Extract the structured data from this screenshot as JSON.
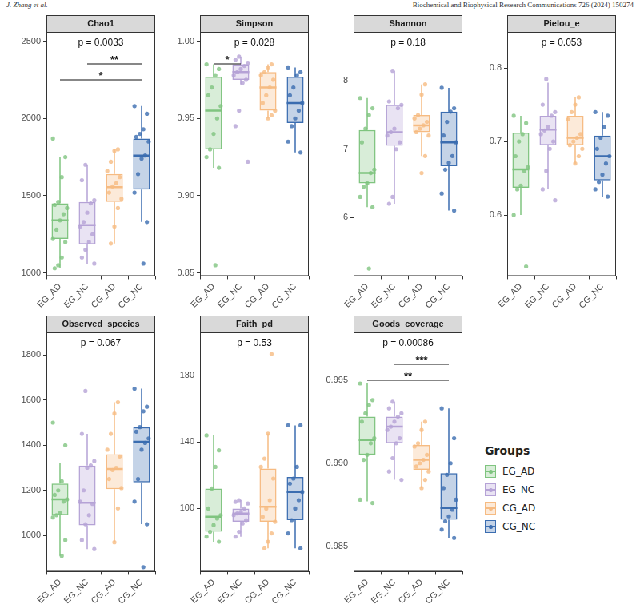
{
  "header": {
    "author": "J. Zhang et al.",
    "journal": "Biochemical and Biophysical Research Communications 726 (2024) 150274"
  },
  "legend_title": "Groups",
  "groups": [
    {
      "name": "EG_AD",
      "color": "#7fc47f"
    },
    {
      "name": "EG_NC",
      "color": "#b5a2d6"
    },
    {
      "name": "CG_AD",
      "color": "#f6bb82"
    },
    {
      "name": "CG_NC",
      "color": "#3b6db0"
    }
  ],
  "chart_data": [
    {
      "type": "boxplot",
      "title": "Chao1",
      "annotation": "p = 0.0033",
      "categories": [
        "EG_AD",
        "EG_NC",
        "CG_AD",
        "CG_NC"
      ],
      "ylim": [
        980,
        2560
      ],
      "yticks": [
        1000,
        1500,
        2000,
        2500
      ],
      "grid": false,
      "boxes": [
        {
          "min": 1030,
          "q1": 1220,
          "median": 1340,
          "q3": 1450,
          "max": 1750
        },
        {
          "min": 1060,
          "q1": 1185,
          "median": 1310,
          "q3": 1460,
          "max": 1700
        },
        {
          "min": 1190,
          "q1": 1460,
          "median": 1555,
          "q3": 1640,
          "max": 1800
        },
        {
          "min": 1330,
          "q1": 1540,
          "median": 1760,
          "q3": 1870,
          "max": 2080
        }
      ],
      "points": [
        [
          1870,
          1750,
          1620,
          1460,
          1440,
          1420,
          1380,
          1340,
          1280,
          1220,
          1200,
          1100,
          1050,
          1030
        ],
        [
          1700,
          1600,
          1470,
          1450,
          1390,
          1330,
          1300,
          1250,
          1200,
          1150,
          1100,
          1060
        ],
        [
          1800,
          1790,
          1720,
          1660,
          1620,
          1580,
          1560,
          1520,
          1480,
          1420,
          1300,
          1190
        ],
        [
          2080,
          2030,
          1930,
          1900,
          1880,
          1850,
          1760,
          1740,
          1640,
          1520,
          1330,
          1060
        ]
      ],
      "brackets": [
        {
          "from": "EG_NC",
          "to": "CG_NC",
          "label": "**"
        },
        {
          "from": "EG_AD",
          "to": "CG_NC",
          "label": "*"
        }
      ]
    },
    {
      "type": "boxplot",
      "title": "Simpson",
      "annotation": "p = 0.028",
      "categories": [
        "EG_AD",
        "EG_NC",
        "CG_AD",
        "CG_NC"
      ],
      "ylim": [
        0.848,
        1.006
      ],
      "yticks": [
        0.85,
        {
          "value": 0.9,
          "label": "0.90"
        },
        0.95,
        {
          "value": 1,
          "label": "1.00"
        }
      ],
      "grid": false,
      "boxes": [
        {
          "min": 0.918,
          "q1": 0.93,
          "median": 0.955,
          "q3": 0.977,
          "max": 0.985
        },
        {
          "min": 0.972,
          "q1": 0.975,
          "median": 0.98,
          "q3": 0.985,
          "max": 0.99
        },
        {
          "min": 0.95,
          "q1": 0.955,
          "median": 0.97,
          "q3": 0.98,
          "max": 0.985
        },
        {
          "min": 0.928,
          "q1": 0.947,
          "median": 0.96,
          "q3": 0.977,
          "max": 0.983
        }
      ],
      "points": [
        [
          0.985,
          0.982,
          0.978,
          0.97,
          0.965,
          0.958,
          0.95,
          0.94,
          0.93,
          0.925,
          0.918,
          0.855
        ],
        [
          0.99,
          0.988,
          0.986,
          0.984,
          0.982,
          0.98,
          0.978,
          0.975,
          0.973,
          0.955,
          0.945,
          0.922
        ],
        [
          0.985,
          0.983,
          0.98,
          0.978,
          0.975,
          0.97,
          0.965,
          0.96,
          0.955,
          0.952,
          0.95
        ],
        [
          0.983,
          0.98,
          0.978,
          0.97,
          0.965,
          0.96,
          0.955,
          0.95,
          0.945,
          0.935,
          0.928
        ]
      ],
      "brackets": [
        {
          "from": "EG_AD",
          "to": "EG_NC",
          "label": "*"
        }
      ]
    },
    {
      "type": "boxplot",
      "title": "Shannon",
      "annotation": "p = 0.18",
      "categories": [
        "EG_AD",
        "EG_NC",
        "CG_AD",
        "CG_NC"
      ],
      "ylim": [
        5.14,
        8.72
      ],
      "yticks": [
        6,
        7,
        8
      ],
      "grid": false,
      "boxes": [
        {
          "min": 6.15,
          "q1": 6.5,
          "median": 6.65,
          "q3": 7.28,
          "max": 7.75
        },
        {
          "min": 6.2,
          "q1": 7.05,
          "median": 7.25,
          "q3": 7.65,
          "max": 8.15
        },
        {
          "min": 6.9,
          "q1": 7.25,
          "median": 7.35,
          "q3": 7.5,
          "max": 7.95
        },
        {
          "min": 6.1,
          "q1": 6.75,
          "median": 7.1,
          "q3": 7.55,
          "max": 7.9
        }
      ],
      "points": [
        [
          7.75,
          7.6,
          7.5,
          7.3,
          7.1,
          6.7,
          6.65,
          6.5,
          6.45,
          6.3,
          6.15,
          5.25
        ],
        [
          8.15,
          7.7,
          7.65,
          7.6,
          7.3,
          7.25,
          7.2,
          7.1,
          7.0,
          6.3,
          6.2
        ],
        [
          7.95,
          7.8,
          7.5,
          7.45,
          7.4,
          7.35,
          7.3,
          7.25,
          7.2,
          6.9,
          6.65
        ],
        [
          7.9,
          7.6,
          7.55,
          7.4,
          7.2,
          7.1,
          6.9,
          6.8,
          6.7,
          6.35,
          6.1
        ]
      ],
      "brackets": []
    },
    {
      "type": "boxplot",
      "title": "Pielou_e",
      "annotation": "p = 0.053",
      "categories": [
        "EG_AD",
        "EG_NC",
        "CG_AD",
        "CG_NC"
      ],
      "ylim": [
        0.517,
        0.849
      ],
      "yticks": [
        0.6,
        0.7,
        0.8
      ],
      "grid": false,
      "boxes": [
        {
          "min": 0.6,
          "q1": 0.637,
          "median": 0.662,
          "q3": 0.712,
          "max": 0.735
        },
        {
          "min": 0.635,
          "q1": 0.695,
          "median": 0.716,
          "q3": 0.735,
          "max": 0.78
        },
        {
          "min": 0.67,
          "q1": 0.695,
          "median": 0.705,
          "q3": 0.735,
          "max": 0.76
        },
        {
          "min": 0.625,
          "q1": 0.647,
          "median": 0.68,
          "q3": 0.708,
          "max": 0.74
        }
      ],
      "points": [
        [
          0.735,
          0.725,
          0.71,
          0.7,
          0.68,
          0.665,
          0.66,
          0.64,
          0.635,
          0.6,
          0.53
        ],
        [
          0.785,
          0.75,
          0.74,
          0.735,
          0.72,
          0.715,
          0.71,
          0.7,
          0.69,
          0.66,
          0.635,
          0.62
        ],
        [
          0.76,
          0.75,
          0.74,
          0.73,
          0.71,
          0.705,
          0.7,
          0.695,
          0.69,
          0.68,
          0.67
        ],
        [
          0.74,
          0.735,
          0.72,
          0.705,
          0.69,
          0.68,
          0.67,
          0.655,
          0.645,
          0.635,
          0.625
        ]
      ],
      "brackets": []
    },
    {
      "type": "boxplot",
      "title": "Observed_species",
      "annotation": "p = 0.067",
      "categories": [
        "EG_AD",
        "EG_NC",
        "CG_AD",
        "CG_NC"
      ],
      "ylim": [
        840,
        1900
      ],
      "yticks": [
        1000,
        1200,
        1400,
        1600,
        1800
      ],
      "grid": false,
      "boxes": [
        {
          "min": 910,
          "q1": 1090,
          "median": 1160,
          "q3": 1230,
          "max": 1320
        },
        {
          "min": 940,
          "q1": 1045,
          "median": 1145,
          "q3": 1310,
          "max": 1450
        },
        {
          "min": 970,
          "q1": 1205,
          "median": 1295,
          "q3": 1360,
          "max": 1590
        },
        {
          "min": 1050,
          "q1": 1235,
          "median": 1415,
          "q3": 1480,
          "max": 1650
        }
      ],
      "points": [
        [
          1500,
          1400,
          1240,
          1200,
          1180,
          1160,
          1150,
          1100,
          1090,
          1080,
          980,
          910
        ],
        [
          1640,
          1450,
          1330,
          1310,
          1300,
          1200,
          1150,
          1140,
          1090,
          1050,
          980,
          940
        ],
        [
          1590,
          1540,
          1450,
          1380,
          1350,
          1300,
          1290,
          1250,
          1210,
          1120,
          970
        ],
        [
          1650,
          1570,
          1550,
          1480,
          1460,
          1430,
          1410,
          1380,
          1250,
          1150,
          1050,
          860
        ]
      ],
      "brackets": []
    },
    {
      "type": "boxplot",
      "title": "Faith_pd",
      "annotation": "p = 0.53",
      "categories": [
        "EG_AD",
        "EG_NC",
        "CG_AD",
        "CG_NC"
      ],
      "ylim": [
        62,
        206
      ],
      "yticks": [
        100,
        140,
        180
      ],
      "grid": false,
      "boxes": [
        {
          "min": 80,
          "q1": 86,
          "median": 95,
          "q3": 112,
          "max": 144
        },
        {
          "min": 83,
          "q1": 92,
          "median": 97,
          "q3": 100,
          "max": 105
        },
        {
          "min": 76,
          "q1": 92,
          "median": 101,
          "q3": 124,
          "max": 145
        },
        {
          "min": 76,
          "q1": 93,
          "median": 110,
          "q3": 119,
          "max": 150
        }
      ],
      "points": [
        [
          144,
          135,
          125,
          112,
          100,
          96,
          94,
          90,
          86,
          83,
          80
        ],
        [
          105,
          104,
          103,
          100,
          98,
          97,
          96,
          93,
          91,
          86,
          83
        ],
        [
          193,
          145,
          130,
          125,
          118,
          105,
          100,
          95,
          92,
          85,
          80,
          76
        ],
        [
          150,
          150,
          125,
          118,
          115,
          110,
          105,
          100,
          93,
          85,
          76
        ]
      ],
      "brackets": []
    },
    {
      "type": "boxplot",
      "title": "Goods_coverage",
      "annotation": "p = 0.00086",
      "categories": [
        "EG_AD",
        "EG_NC",
        "CG_AD",
        "CG_NC"
      ],
      "ylim": [
        0.98347,
        0.99788
      ],
      "yticks": [
        0.985,
        {
          "value": 0.99,
          "label": "0.990"
        },
        0.995
      ],
      "grid": false,
      "boxes": [
        {
          "min": 0.9877,
          "q1": 0.9905,
          "median": 0.9914,
          "q3": 0.9928,
          "max": 0.9948
        },
        {
          "min": 0.989,
          "q1": 0.9912,
          "median": 0.9922,
          "q3": 0.9928,
          "max": 0.9937
        },
        {
          "min": 0.9885,
          "q1": 0.9896,
          "median": 0.9902,
          "q3": 0.9911,
          "max": 0.9925
        },
        {
          "min": 0.9855,
          "q1": 0.9866,
          "median": 0.9873,
          "q3": 0.9894,
          "max": 0.9933
        }
      ],
      "points": [
        [
          0.9948,
          0.9938,
          0.9935,
          0.993,
          0.9925,
          0.9915,
          0.9912,
          0.9905,
          0.9902,
          0.9878,
          0.9876
        ],
        [
          0.9937,
          0.9933,
          0.993,
          0.9928,
          0.9925,
          0.9922,
          0.992,
          0.9915,
          0.9912,
          0.9903,
          0.9895,
          0.989
        ],
        [
          0.9925,
          0.992,
          0.9912,
          0.991,
          0.9905,
          0.9902,
          0.99,
          0.9898,
          0.9895,
          0.989,
          0.9885
        ],
        [
          0.9933,
          0.9915,
          0.99,
          0.9893,
          0.9885,
          0.9878,
          0.9872,
          0.9868,
          0.9865,
          0.986,
          0.9855
        ]
      ],
      "brackets": [
        {
          "from": "EG_NC",
          "to": "CG_NC",
          "label": "***"
        },
        {
          "from": "EG_AD",
          "to": "CG_NC",
          "label": "**"
        }
      ]
    }
  ]
}
